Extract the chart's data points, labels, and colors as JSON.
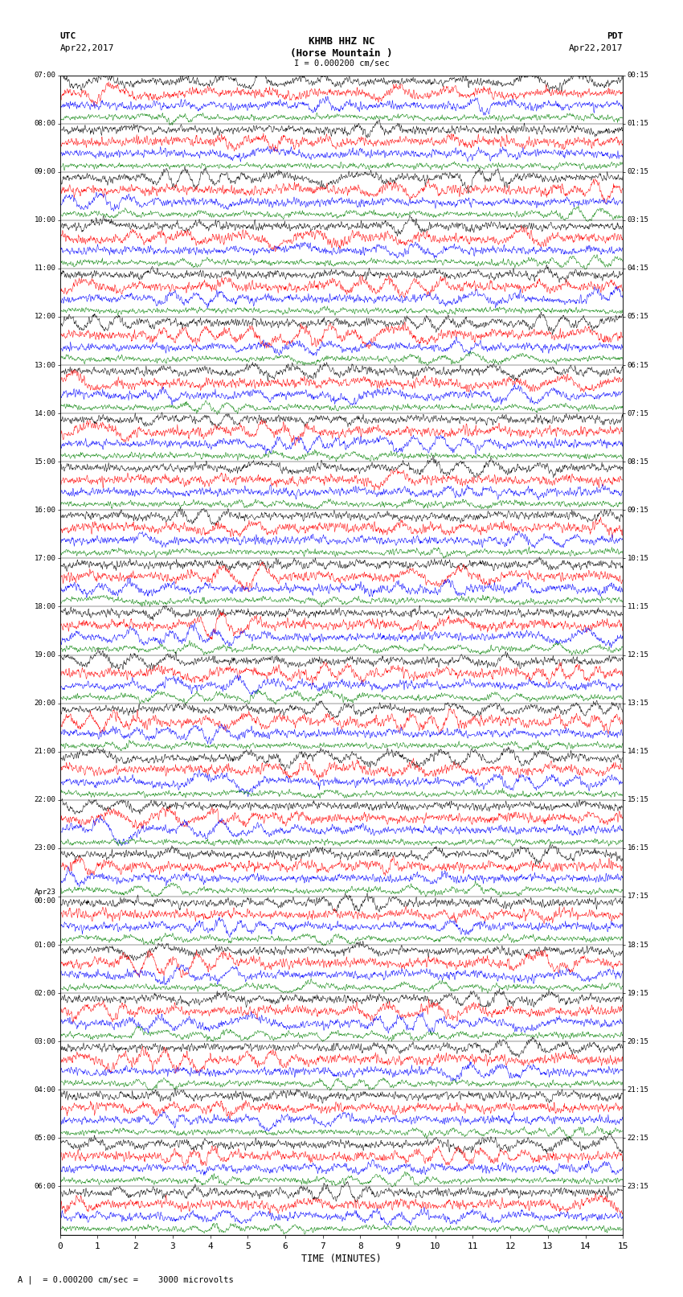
{
  "title_line1": "KHMB HHZ NC",
  "title_line2": "(Horse Mountain )",
  "scale_bar": "I = 0.000200 cm/sec",
  "left_header_line1": "UTC",
  "left_header_line2": "Apr22,2017",
  "right_header_line1": "PDT",
  "right_header_line2": "Apr22,2017",
  "xlabel": "TIME (MINUTES)",
  "bottom_note": "A |  = 0.000200 cm/sec =    3000 microvolts",
  "utc_labels": [
    "07:00",
    "08:00",
    "09:00",
    "10:00",
    "11:00",
    "12:00",
    "13:00",
    "14:00",
    "15:00",
    "16:00",
    "17:00",
    "18:00",
    "19:00",
    "20:00",
    "21:00",
    "22:00",
    "23:00",
    "Apr23\n00:00",
    "01:00",
    "02:00",
    "03:00",
    "04:00",
    "05:00",
    "06:00"
  ],
  "pdt_labels": [
    "00:15",
    "01:15",
    "02:15",
    "03:15",
    "04:15",
    "05:15",
    "06:15",
    "07:15",
    "08:15",
    "09:15",
    "10:15",
    "11:15",
    "12:15",
    "13:15",
    "14:15",
    "15:15",
    "16:15",
    "17:15",
    "18:15",
    "19:15",
    "20:15",
    "21:15",
    "22:15",
    "23:15"
  ],
  "colors": [
    "black",
    "red",
    "blue",
    "green"
  ],
  "n_hour_blocks": 24,
  "traces_per_block": 4,
  "bg_color": "white",
  "trace_amplitude": 0.42,
  "noise_scale": [
    1.0,
    1.2,
    1.0,
    0.7
  ],
  "fig_width": 8.5,
  "fig_height": 16.13,
  "dpi": 100,
  "xticks": [
    0,
    1,
    2,
    3,
    4,
    5,
    6,
    7,
    8,
    9,
    10,
    11,
    12,
    13,
    14,
    15
  ],
  "xlim": [
    0,
    15
  ],
  "seed": 12345
}
